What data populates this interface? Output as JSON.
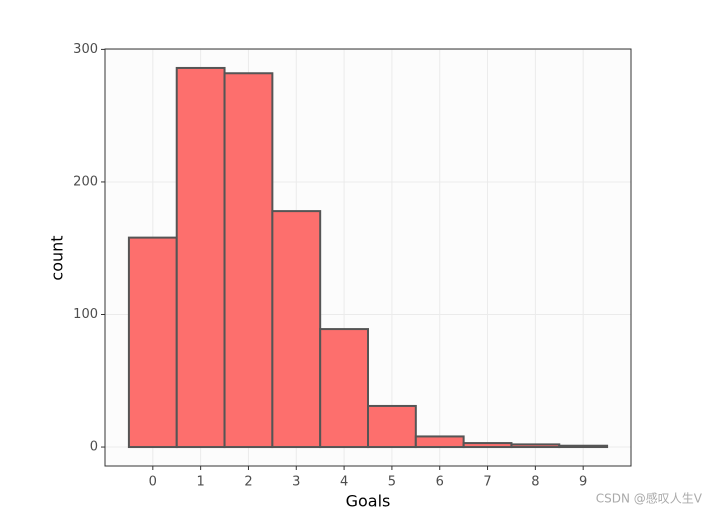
{
  "chart_data": {
    "type": "histogram",
    "x_label": "Goals",
    "y_label": "count",
    "bins": [
      -0.5,
      0.5,
      1.5,
      2.5,
      3.5,
      4.5,
      5.5,
      6.5,
      7.5,
      8.5,
      9.5
    ],
    "counts": [
      158,
      286,
      282,
      178,
      89,
      31,
      8,
      3,
      2,
      1
    ],
    "color": "#fd6f6d",
    "edge_color": "#555555",
    "xlim": [
      -1,
      10
    ],
    "xticks": [
      0,
      1,
      2,
      3,
      4,
      5,
      6,
      7,
      8,
      9
    ],
    "ylim": [
      -14.3,
      300.3
    ],
    "yticks": [
      0,
      100,
      200,
      300
    ],
    "grid": true
  },
  "watermark": "CSDN @感叹人生V"
}
